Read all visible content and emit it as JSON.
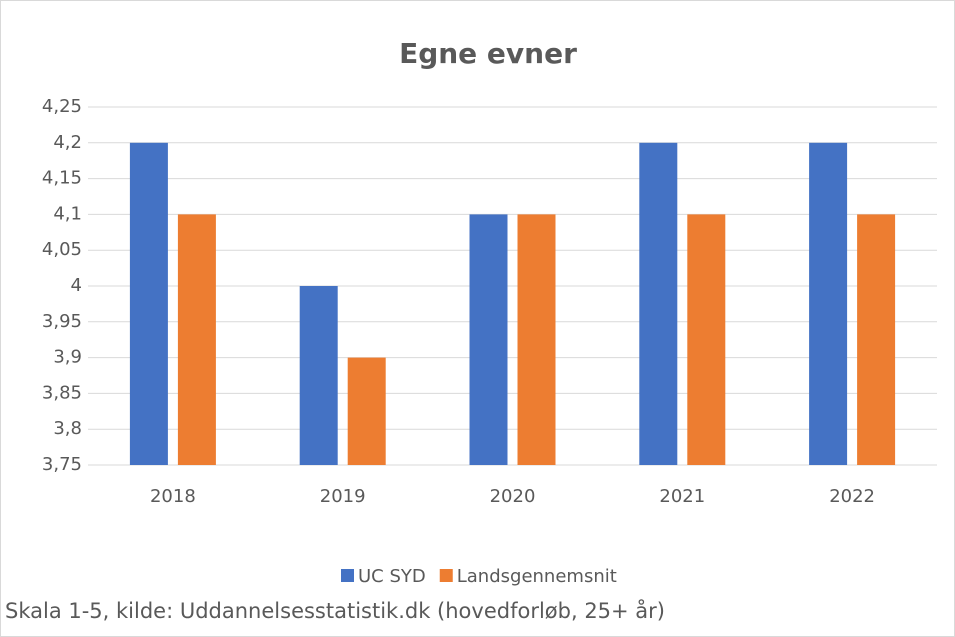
{
  "chart_data": {
    "type": "bar",
    "title": "Egne evner",
    "categories": [
      "2018",
      "2019",
      "2020",
      "2021",
      "2022"
    ],
    "series": [
      {
        "name": "UC SYD",
        "color": "#4472c4",
        "values": [
          4.2,
          4.0,
          4.1,
          4.2,
          4.2
        ]
      },
      {
        "name": "Landsgennemsnit",
        "color": "#ed7d31",
        "values": [
          4.1,
          3.9,
          4.1,
          4.1,
          4.1
        ]
      }
    ],
    "ylim": [
      3.75,
      4.25
    ],
    "yticks": [
      {
        "value": 3.75,
        "label": "3,75"
      },
      {
        "value": 3.8,
        "label": "3,8"
      },
      {
        "value": 3.85,
        "label": "3,85"
      },
      {
        "value": 3.9,
        "label": "3,9"
      },
      {
        "value": 3.95,
        "label": "3,95"
      },
      4,
      {
        "value": 4.05,
        "label": "4,05"
      },
      {
        "value": 4.1,
        "label": "4,1"
      },
      {
        "value": 4.15,
        "label": "4,15"
      },
      {
        "value": 4.2,
        "label": "4,2"
      },
      {
        "value": 4.25,
        "label": "4,25"
      }
    ],
    "grid": true,
    "legend": "bottom",
    "note": "Skala 1-5, kilde: Uddannelsesstatistik.dk (hovedforløb, 25+ år)"
  }
}
